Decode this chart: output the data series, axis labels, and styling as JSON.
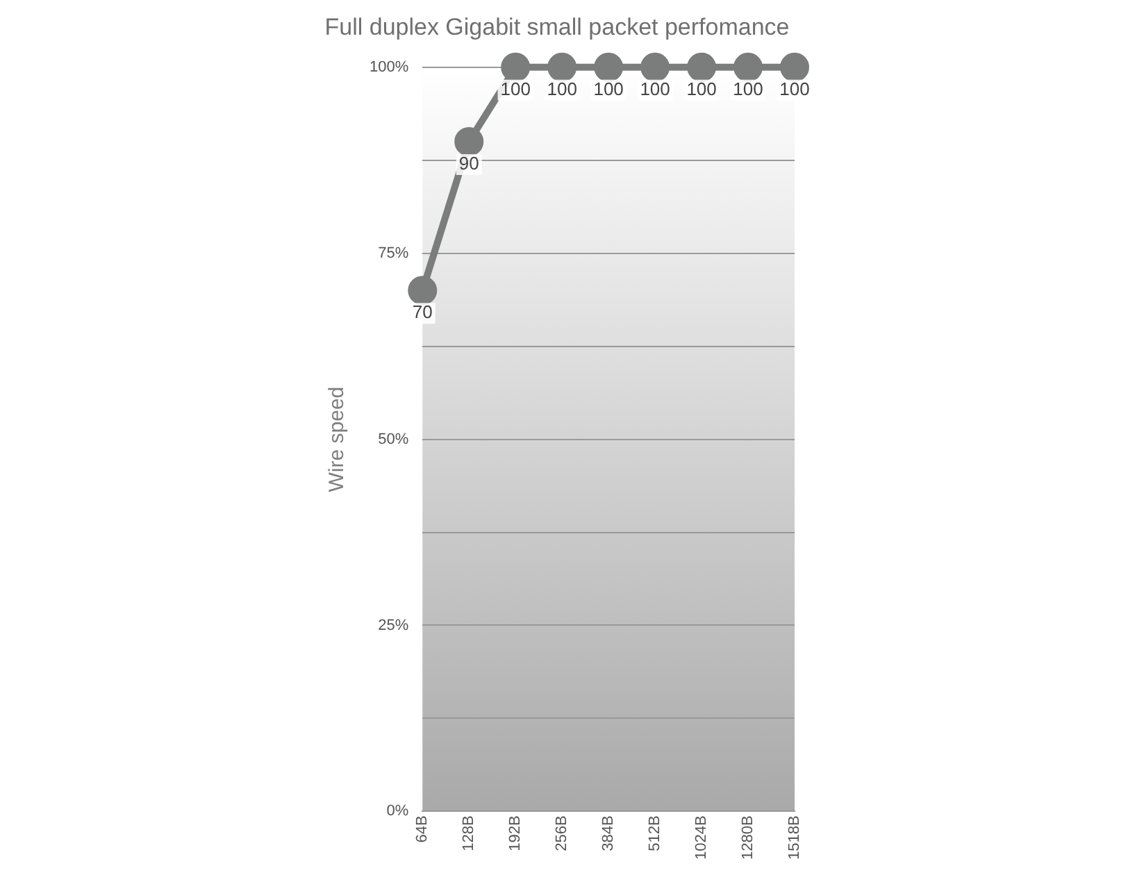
{
  "chart_data": {
    "type": "line",
    "title": "Full duplex Gigabit small packet perfomance",
    "ylabel": "Wire speed",
    "categories": [
      "64B",
      "128B",
      "192B",
      "256B",
      "384B",
      "512B",
      "1024B",
      "1280B",
      "1518B"
    ],
    "series": [
      {
        "color": "#7a7d7b",
        "values": [
          70,
          90,
          100,
          100,
          100,
          100,
          100,
          100,
          100
        ]
      }
    ],
    "ylim": [
      0,
      100
    ],
    "yticks": [
      {
        "value": 0,
        "label": "0%"
      },
      {
        "value": 12.5,
        "label": null
      },
      {
        "value": 25,
        "label": "25%"
      },
      {
        "value": 37.5,
        "label": null
      },
      {
        "value": 50,
        "label": "50%"
      },
      {
        "value": 62.5,
        "label": null
      },
      {
        "value": 75,
        "label": "75%"
      },
      {
        "value": 87.5,
        "label": null
      },
      {
        "value": 100,
        "label": "100%"
      }
    ],
    "grid": "y",
    "marker": "circle",
    "line_style": "solid",
    "data_labels": true,
    "legend": false
  }
}
